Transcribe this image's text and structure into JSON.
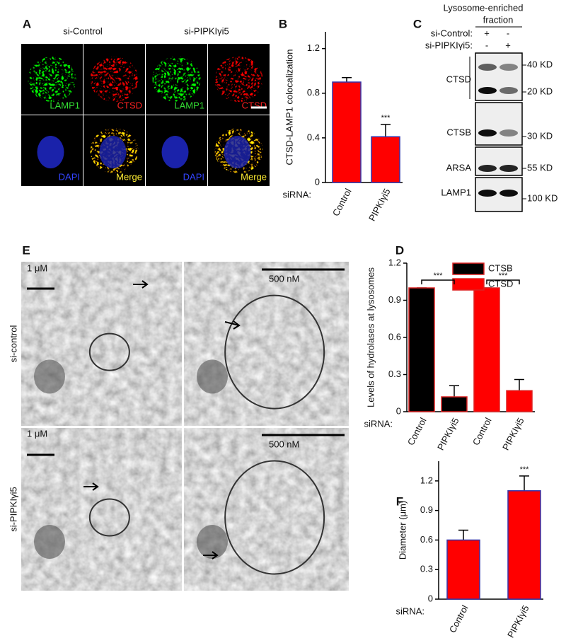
{
  "panel_letters": [
    "A",
    "B",
    "C",
    "D",
    "E",
    "F"
  ],
  "panel_A": {
    "columns": [
      "si-Control",
      "si-PIPKIγi5"
    ],
    "channels": [
      "LAMP1",
      "CTSD",
      "DAPI",
      "Merge"
    ]
  },
  "panel_C": {
    "header": [
      "Lysosome-enriched",
      "fraction"
    ],
    "rows": [
      {
        "label": "si-Control:",
        "marks": [
          "+",
          "-"
        ]
      },
      {
        "label": "si-PIPKIγi5:",
        "marks": [
          "-",
          "+"
        ]
      }
    ],
    "proteins": [
      "CTSD",
      "CTSB",
      "ARSA",
      "LAMP1"
    ],
    "sizes": [
      "40 KD",
      "20 KD",
      "30 KD",
      "55 KD",
      "100 KD"
    ]
  },
  "panel_E": {
    "rows": [
      "si-control",
      "si-PIPKIγi5"
    ],
    "scale_bars": [
      "1 μM",
      "500 nM"
    ]
  },
  "chart_data": [
    {
      "type": "bar",
      "y_label": "CTSD-LAMP1 colocalization",
      "x_label": "siRNA:",
      "categories": [
        "Control",
        "PIPKIγi5"
      ],
      "values": [
        0.9,
        0.41
      ],
      "errors": [
        0.04,
        0.11
      ],
      "color": "#ff0000",
      "edge_color": "#3333aa",
      "ylim": [
        0,
        1.35
      ],
      "yticks": [
        0,
        0.4,
        0.8,
        1.2
      ],
      "annotations": [
        "***"
      ]
    },
    {
      "type": "grouped_bar",
      "y_label": "Levels of hydrolases at lysosomes",
      "x_label": "siRNA:",
      "categories": [
        "Control",
        "PIPKIγi5"
      ],
      "series": [
        {
          "name": "CTSB",
          "color": "#000000",
          "values": [
            1.0,
            0.12
          ],
          "errors": [
            0,
            0.09
          ]
        },
        {
          "name": "CTSD",
          "color": "#ff0000",
          "values": [
            1.0,
            0.17
          ],
          "errors": [
            0,
            0.09
          ]
        }
      ],
      "edge_color": "#dd2222",
      "ylim": [
        0,
        1.2
      ],
      "yticks": [
        0,
        0.3,
        0.6,
        0.9,
        1.2
      ],
      "annotations": [
        "***",
        "***"
      ]
    },
    {
      "type": "bar",
      "y_label": "Diameter (μm)",
      "x_label": "siRNA:",
      "categories": [
        "Control",
        "PIPKIγi5"
      ],
      "values": [
        0.6,
        1.1
      ],
      "errors": [
        0.1,
        0.15
      ],
      "color": "#ff0000",
      "edge_color": "#3333aa",
      "ylim": [
        0,
        1.4
      ],
      "yticks": [
        0,
        0.3,
        0.6,
        0.9,
        1.2
      ],
      "annotations": [
        "***"
      ]
    }
  ]
}
